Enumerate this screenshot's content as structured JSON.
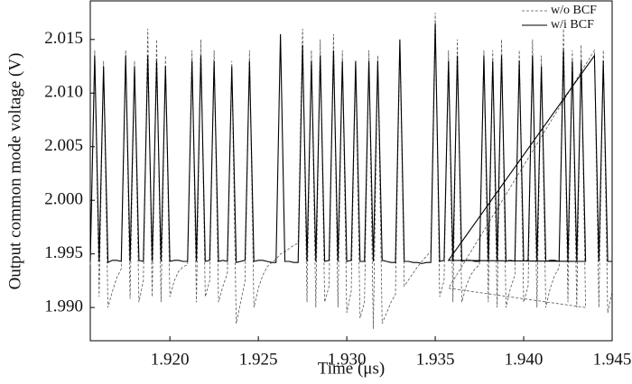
{
  "chart_data": {
    "type": "line",
    "x_label": "Time (μs)",
    "y_label": "Output common mode voltage (V)",
    "x": [
      1.9155,
      1.91575,
      1.916,
      1.91625,
      1.9165,
      1.91675,
      1.917,
      1.91725,
      1.9175,
      1.91775,
      1.918,
      1.91825,
      1.9185,
      1.91875,
      1.919,
      1.91925,
      1.9195,
      1.91975,
      1.92,
      1.92025,
      1.9205,
      1.92075,
      1.921,
      1.92125,
      1.9215,
      1.92175,
      1.922,
      1.92225,
      1.9225,
      1.92275,
      1.923,
      1.92325,
      1.9235,
      1.92375,
      1.924,
      1.92425,
      1.9245,
      1.92475,
      1.925,
      1.92525,
      1.9255,
      1.92575,
      1.926,
      1.92625,
      1.9265,
      1.92675,
      1.927,
      1.92725,
      1.9275,
      1.92775,
      1.928,
      1.92825,
      1.9285,
      1.92875,
      1.929,
      1.92925,
      1.9295,
      1.92975,
      1.93,
      1.93025,
      1.9305,
      1.93075,
      1.931,
      1.93125,
      1.9315,
      1.93175,
      1.932,
      1.93225,
      1.9325,
      1.93275,
      1.933,
      1.93325,
      1.9335,
      1.93375,
      1.934,
      1.93425,
      1.9345,
      1.93475,
      1.935,
      1.93525,
      1.9355,
      1.93575,
      1.936,
      1.93625,
      1.9365,
      1.93675,
      1.937,
      1.93725,
      1.9375,
      1.93775,
      1.938,
      1.93825,
      1.9385,
      1.93875,
      1.939,
      1.93925,
      1.9395,
      1.93975,
      1.94,
      1.94025,
      1.9405,
      1.94075,
      1.941,
      1.94125,
      1.9415,
      1.94175,
      1.942,
      1.94225,
      1.9425,
      1.94275,
      1.943,
      1.94325,
      1.9435,
      1.93575,
      1.944,
      1.94425,
      1.9445,
      1.94475,
      1.945
    ],
    "series": [
      {
        "name": "w/o BCF",
        "color": "#555555",
        "dash": true,
        "values": [
          1.994,
          2.014,
          1.991,
          2.013,
          1.99,
          1.9915,
          1.9928,
          1.9936,
          2.014,
          1.9908,
          2.013,
          1.9905,
          1.9925,
          2.016,
          1.991,
          2.015,
          1.9905,
          2.0135,
          1.991,
          1.9925,
          1.9934,
          1.9938,
          1.994,
          2.014,
          1.9905,
          2.015,
          1.991,
          1.9925,
          2.014,
          1.9905,
          1.992,
          1.9932,
          2.013,
          1.9885,
          1.9905,
          1.9925,
          2.014,
          1.99,
          1.9918,
          1.993,
          1.9938,
          1.9942,
          1.9945,
          1.995,
          1.9952,
          1.9955,
          1.9958,
          1.996,
          2.016,
          1.9905,
          2.014,
          1.99,
          2.015,
          1.9905,
          1.992,
          2.0155,
          1.99,
          2.014,
          1.9895,
          1.9915,
          2.013,
          1.989,
          1.9905,
          2.014,
          1.988,
          2.0135,
          1.9885,
          1.9895,
          1.9905,
          1.9912,
          2.015,
          1.992,
          1.9926,
          1.9932,
          1.9938,
          1.9943,
          1.9948,
          1.9952,
          2.0175,
          1.991,
          1.9925,
          2.014,
          1.9905,
          2.015,
          1.9905,
          1.992,
          1.993,
          1.9936,
          1.994,
          2.014,
          1.9905,
          2.014,
          1.99,
          2.015,
          1.99,
          1.9918,
          1.993,
          2.014,
          1.9905,
          1.992,
          2.015,
          1.99,
          2.0135,
          1.99,
          1.9918,
          1.993,
          1.9937,
          2.016,
          1.9905,
          2.014,
          1.99,
          2.0145,
          1.99,
          1.9918,
          2.014,
          1.99,
          2.014,
          1.9895,
          1.9915
        ]
      },
      {
        "name": "w/i BCF",
        "color": "#000000",
        "dash": false,
        "values": [
          1.9943,
          2.0135,
          1.9943,
          2.0125,
          1.9942,
          1.9944,
          1.9944,
          1.9943,
          2.0135,
          1.9943,
          2.0125,
          1.9944,
          1.9943,
          2.0135,
          1.9943,
          2.013,
          1.9943,
          2.0125,
          1.9943,
          1.9944,
          1.9944,
          1.9943,
          1.9943,
          2.013,
          1.9943,
          2.0135,
          1.9943,
          1.9944,
          2.013,
          1.9943,
          1.9944,
          1.9943,
          2.0125,
          1.9942,
          1.9943,
          1.9944,
          2.013,
          1.9943,
          1.9944,
          1.9944,
          1.9943,
          1.9942,
          1.9942,
          2.0155,
          1.9943,
          1.9943,
          1.9942,
          1.9942,
          2.0145,
          1.9943,
          2.013,
          1.9943,
          2.0135,
          1.9943,
          1.9944,
          2.014,
          1.9943,
          2.013,
          1.9943,
          1.9944,
          2.013,
          1.9943,
          1.9943,
          2.013,
          1.9943,
          2.013,
          1.9944,
          1.9943,
          1.9942,
          1.9942,
          2.015,
          1.9943,
          1.9943,
          1.9942,
          1.9942,
          1.9941,
          1.9942,
          1.9942,
          2.0165,
          1.9943,
          1.9944,
          2.013,
          1.9943,
          2.0135,
          1.9943,
          1.9944,
          1.9944,
          1.9943,
          1.9943,
          2.0135,
          1.9943,
          2.013,
          1.9943,
          2.0135,
          1.9943,
          1.9944,
          1.9943,
          2.013,
          1.9943,
          1.9944,
          2.0135,
          1.9943,
          2.0125,
          1.9943,
          1.9944,
          1.9944,
          1.9943,
          2.014,
          1.9943,
          2.013,
          1.9943,
          2.013,
          1.9943,
          1.9944,
          2.0135,
          1.9943,
          2.013,
          1.9943,
          1.9943
        ]
      }
    ],
    "xlim": [
      1.9155,
      1.945
    ],
    "ylim": [
      1.9869,
      2.0186
    ],
    "xticks": [
      {
        "value": 1.92,
        "label": "1.920"
      },
      1.925,
      {
        "value": 1.93,
        "label": "1.930"
      },
      1.935,
      {
        "value": 1.94,
        "label": "1.940"
      },
      1.945
    ],
    "yticks": [
      {
        "value": 1.99,
        "label": "1.990"
      },
      1.995,
      {
        "value": 2,
        "label": "2.000"
      },
      2.005,
      {
        "value": 2.01,
        "label": "2.010"
      },
      2.015
    ],
    "legend": "upper right",
    "grid": false
  }
}
